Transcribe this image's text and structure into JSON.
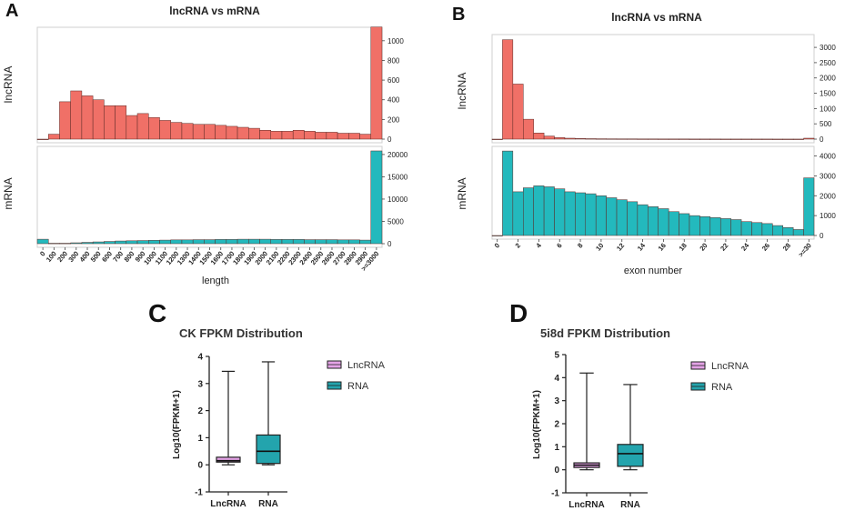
{
  "panels": {
    "a": "A",
    "b": "B",
    "c": "C",
    "d": "D"
  },
  "chart_data": [
    {
      "id": "A",
      "type": "bar",
      "title": "lncRNA vs mRNA",
      "xlabel": "length",
      "categories": [
        "0",
        "100",
        "200",
        "300",
        "400",
        "500",
        "600",
        "700",
        "800",
        "900",
        "1000",
        "1100",
        "1200",
        "1300",
        "1400",
        "1500",
        "1600",
        "1700",
        "1800",
        "1900",
        "2000",
        "2100",
        "2200",
        "2300",
        "2400",
        "2500",
        "2600",
        "2700",
        "2800",
        "2900",
        ">=3000"
      ],
      "series": [
        {
          "name": "lncRNA",
          "facet_label": "lncRNA",
          "color": "#f07067",
          "ylim": [
            0,
            1100
          ],
          "yticks": [
            0,
            200,
            400,
            600,
            800,
            1000
          ],
          "values": [
            0,
            50,
            380,
            490,
            440,
            400,
            340,
            340,
            240,
            260,
            220,
            190,
            170,
            160,
            150,
            150,
            140,
            130,
            120,
            110,
            90,
            80,
            80,
            90,
            80,
            70,
            70,
            60,
            60,
            50,
            1140
          ]
        },
        {
          "name": "mRNA",
          "facet_label": "mRNA",
          "color": "#23b9bd",
          "ylim": [
            0,
            21000
          ],
          "yticks": [
            0,
            5000,
            10000,
            15000,
            20000
          ],
          "values": [
            1000,
            100,
            100,
            200,
            300,
            400,
            500,
            600,
            650,
            700,
            750,
            800,
            850,
            850,
            900,
            900,
            950,
            950,
            1000,
            1000,
            1000,
            950,
            950,
            950,
            900,
            900,
            900,
            850,
            850,
            800,
            20800
          ]
        }
      ]
    },
    {
      "id": "B",
      "type": "bar",
      "title": "lncRNA vs mRNA",
      "xlabel": "exon number",
      "x": [
        0,
        1,
        2,
        3,
        4,
        5,
        6,
        7,
        8,
        9,
        10,
        11,
        12,
        13,
        14,
        15,
        16,
        17,
        18,
        19,
        20,
        21,
        22,
        23,
        24,
        25,
        26,
        27,
        28,
        29,
        30
      ],
      "xticklabels": [
        "0",
        "2",
        "4",
        "6",
        "8",
        "10",
        "12",
        "14",
        "16",
        "18",
        "20",
        "22",
        "24",
        "26",
        "28",
        ">=30"
      ],
      "xtick_positions": [
        0,
        2,
        4,
        6,
        8,
        10,
        12,
        14,
        16,
        18,
        20,
        22,
        24,
        26,
        28,
        30
      ],
      "series": [
        {
          "name": "lncRNA",
          "facet_label": "lncRNA",
          "color": "#f07067",
          "ylim": [
            0,
            3300
          ],
          "yticks": [
            0,
            500,
            1000,
            1500,
            2000,
            2500,
            3000
          ],
          "values": [
            0,
            3250,
            1800,
            650,
            200,
            100,
            50,
            30,
            20,
            15,
            12,
            10,
            8,
            8,
            6,
            6,
            5,
            5,
            5,
            4,
            4,
            4,
            3,
            3,
            3,
            3,
            3,
            2,
            2,
            2,
            30
          ]
        },
        {
          "name": "mRNA",
          "facet_label": "mRNA",
          "color": "#23b9bd",
          "ylim": [
            0,
            4300
          ],
          "yticks": [
            0,
            1000,
            2000,
            3000,
            4000
          ],
          "values": [
            0,
            4250,
            2200,
            2400,
            2500,
            2450,
            2350,
            2200,
            2150,
            2100,
            2000,
            1900,
            1800,
            1700,
            1550,
            1450,
            1350,
            1200,
            1100,
            1000,
            950,
            900,
            850,
            800,
            700,
            650,
            600,
            500,
            400,
            300,
            2900
          ]
        }
      ]
    },
    {
      "id": "C",
      "type": "box",
      "title": "CK FPKM Distribution",
      "ylabel": "Log10(FPKM+1)",
      "ylim": [
        -1,
        4
      ],
      "yticks": [
        -1,
        0,
        1,
        2,
        3,
        4
      ],
      "categories": [
        "LncRNA",
        "RNA"
      ],
      "boxes": [
        {
          "name": "LncRNA",
          "color": "#e4a3e6",
          "min": 0.0,
          "q1": 0.1,
          "median": 0.15,
          "q3": 0.28,
          "max": 3.45
        },
        {
          "name": "RNA",
          "color": "#23a4ad",
          "min": 0.0,
          "q1": 0.05,
          "median": 0.5,
          "q3": 1.1,
          "max": 3.8
        }
      ],
      "legend": [
        "LncRNA",
        "RNA"
      ]
    },
    {
      "id": "D",
      "type": "box",
      "title": "5i8d FPKM Distribution",
      "ylabel": "Log10(FPKM+1)",
      "ylim": [
        -1,
        5
      ],
      "yticks": [
        -1,
        0,
        1,
        2,
        3,
        4,
        5
      ],
      "categories": [
        "LncRNA",
        "RNA"
      ],
      "boxes": [
        {
          "name": "LncRNA",
          "color": "#e4a3e6",
          "min": 0.0,
          "q1": 0.1,
          "median": 0.2,
          "q3": 0.3,
          "max": 4.2
        },
        {
          "name": "RNA",
          "color": "#23a4ad",
          "min": 0.0,
          "q1": 0.15,
          "median": 0.7,
          "q3": 1.1,
          "max": 3.7
        }
      ],
      "legend": [
        "LncRNA",
        "RNA"
      ]
    }
  ]
}
